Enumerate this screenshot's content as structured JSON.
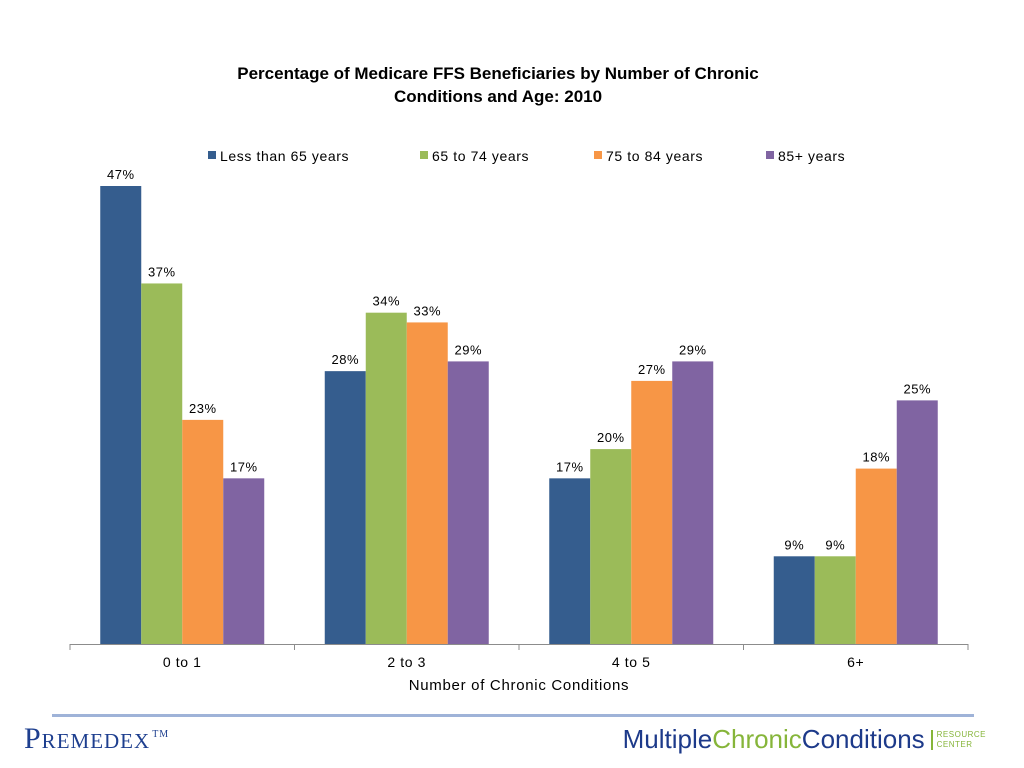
{
  "chart_data": {
    "type": "bar",
    "title": [
      "Percentage of Medicare FFS Beneficiaries by Number of Chronic",
      "Conditions and Age: 2010"
    ],
    "xlabel": "Number of Chronic Conditions",
    "ylabel": "",
    "ylim": [
      0,
      47
    ],
    "grid": false,
    "legend_position": "top",
    "categories": [
      "0 to 1",
      "2 to 3",
      "4 to 5",
      "6+"
    ],
    "series": [
      {
        "name": "Less than 65 years",
        "color": "#355d8e",
        "values": [
          47,
          28,
          17,
          9
        ],
        "labels": [
          "47%",
          "28%",
          "17%",
          "9%"
        ]
      },
      {
        "name": "65 to 74 years",
        "color": "#9bbb59",
        "values": [
          37,
          34,
          20,
          9
        ],
        "labels": [
          "37%",
          "34%",
          "20%",
          "9%"
        ]
      },
      {
        "name": "75 to 84 years",
        "color": "#f79646",
        "values": [
          23,
          33,
          27,
          18
        ],
        "labels": [
          "23%",
          "33%",
          "27%",
          "18%"
        ]
      },
      {
        "name": "85+ years",
        "color": "#8064a2",
        "values": [
          17,
          29,
          29,
          25
        ],
        "labels": [
          "17%",
          "29%",
          "29%",
          "25%"
        ]
      }
    ]
  },
  "footer": {
    "logo_left": "Premedex",
    "logo_left_tm": "TM",
    "logo_right_part1": "Multiple",
    "logo_right_part2": "Chronic",
    "logo_right_part3": "Conditions",
    "logo_right_sub1": "RESOURCE",
    "logo_right_sub2": "CENTER"
  }
}
